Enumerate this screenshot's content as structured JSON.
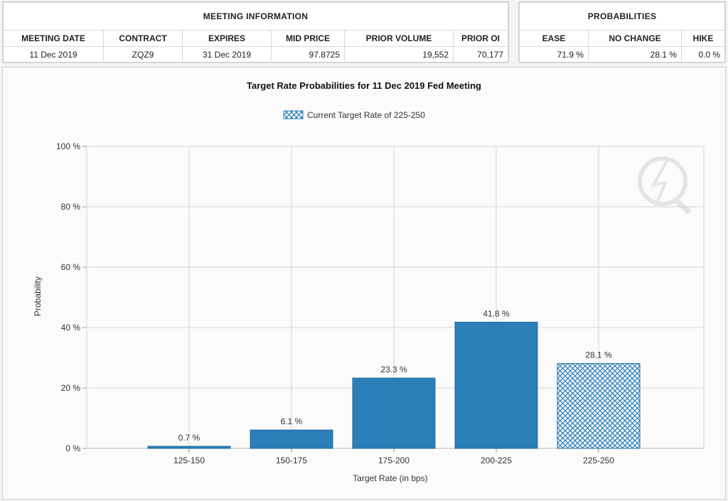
{
  "meeting_info": {
    "section_title": "MEETING INFORMATION",
    "headers": [
      "MEETING DATE",
      "CONTRACT",
      "EXPIRES",
      "MID PRICE",
      "PRIOR VOLUME",
      "PRIOR OI"
    ],
    "values": [
      "11 Dec 2019",
      "ZQZ9",
      "31 Dec 2019",
      "97.8725",
      "19,552",
      "70,177"
    ]
  },
  "probabilities": {
    "section_title": "PROBABILITIES",
    "headers": [
      "EASE",
      "NO CHANGE",
      "HIKE"
    ],
    "values": [
      "71.9 %",
      "28.1 %",
      "0.0 %"
    ]
  },
  "colors": {
    "bar": "#2b7fb8",
    "bar_edge": "#1f6a9e",
    "grid": "#d6d6d6"
  },
  "chart_data": {
    "type": "bar",
    "title": "Target Rate Probabilities for 11 Dec 2019 Fed Meeting",
    "legend": "Current Target Rate of 225-250",
    "legend_position": "top-center",
    "xlabel": "Target Rate (in bps)",
    "ylabel": "Probability",
    "categories": [
      "125-150",
      "150-175",
      "175-200",
      "200-225",
      "225-250"
    ],
    "values": [
      0.7,
      6.1,
      23.3,
      41.8,
      28.1
    ],
    "value_labels": [
      "0.7 %",
      "6.1 %",
      "23.3 %",
      "41.8 %",
      "28.1 %"
    ],
    "current_target_index": 4,
    "ylim": [
      0,
      100
    ],
    "yticks": [
      0,
      20,
      40,
      60,
      80,
      100
    ],
    "ytick_labels": [
      "0 %",
      "20 %",
      "40 %",
      "60 %",
      "80 %",
      "100 %"
    ],
    "grid": true
  }
}
